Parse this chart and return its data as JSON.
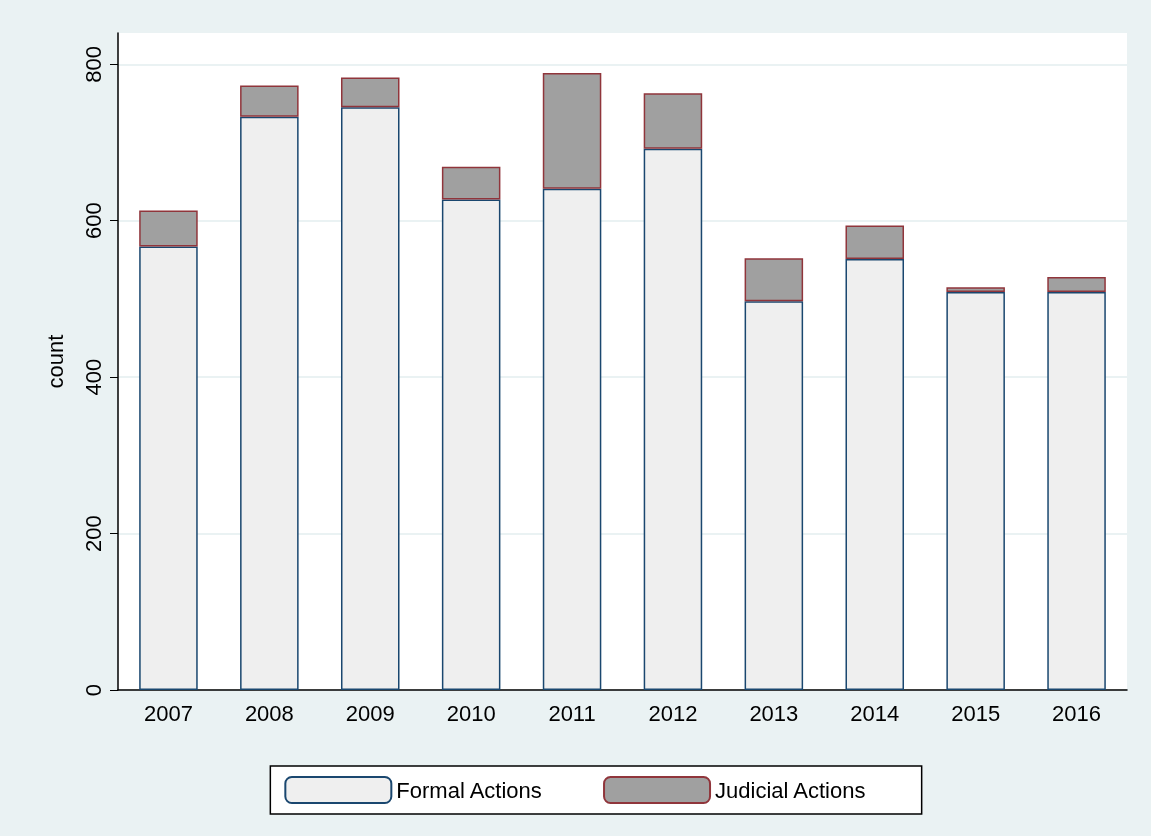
{
  "chart_data": {
    "type": "bar",
    "stacked": true,
    "ylabel": "count",
    "categories": [
      "2007",
      "2008",
      "2009",
      "2010",
      "2011",
      "2012",
      "2013",
      "2014",
      "2015",
      "2016"
    ],
    "series": [
      {
        "name": "Formal Actions",
        "color": "#efefef",
        "values": [
          567,
          733,
          745,
          627,
          641,
          692,
          497,
          551,
          509,
          509
        ]
      },
      {
        "name": "Judicial Actions",
        "color": "#a0a0a0",
        "values": [
          46,
          40,
          38,
          42,
          148,
          71,
          55,
          43,
          6,
          19
        ]
      }
    ],
    "ylim": [
      0,
      840
    ],
    "yticks": [
      0,
      200,
      400,
      600,
      800
    ],
    "grid": "y",
    "legend": "bottom"
  }
}
